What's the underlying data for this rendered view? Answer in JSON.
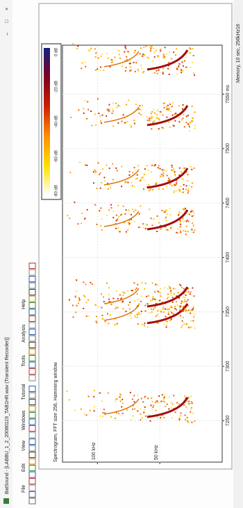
{
  "window_title": "BatSound - [LABBU_1_2_20080119_TAB1HR.wav (Transient Recorder)]",
  "menu": [
    "File",
    "Edit",
    "View",
    "Windows",
    "Tutorial",
    "Tools",
    "Analysis",
    "Help"
  ],
  "status": "Memory, 10 sec, 256kHz16",
  "chart_data": {
    "type": "spectrogram",
    "title": "Spectrogram, FFT size 256, Hamming window",
    "xlim": [
      7212,
      7595
    ],
    "xticks": [
      7250,
      7300,
      7350,
      7400,
      7450,
      7500,
      {
        "value": 7550,
        "label": "7550 ms"
      }
    ],
    "ylim": [
      0,
      128
    ],
    "yticks": [
      {
        "value": 50,
        "label": "50 kHz"
      },
      {
        "value": 100,
        "label": "100 kHz"
      }
    ],
    "grid": true,
    "colorbar": {
      "colors": [
        "#ffffff",
        "#ffe000",
        "#ff9000",
        "#d02000",
        "#800020",
        "#102080"
      ],
      "labels": [
        "-80 dB",
        "-60 dB",
        "-40 dB",
        "-20 dB",
        "0 dB"
      ]
    }
  }
}
